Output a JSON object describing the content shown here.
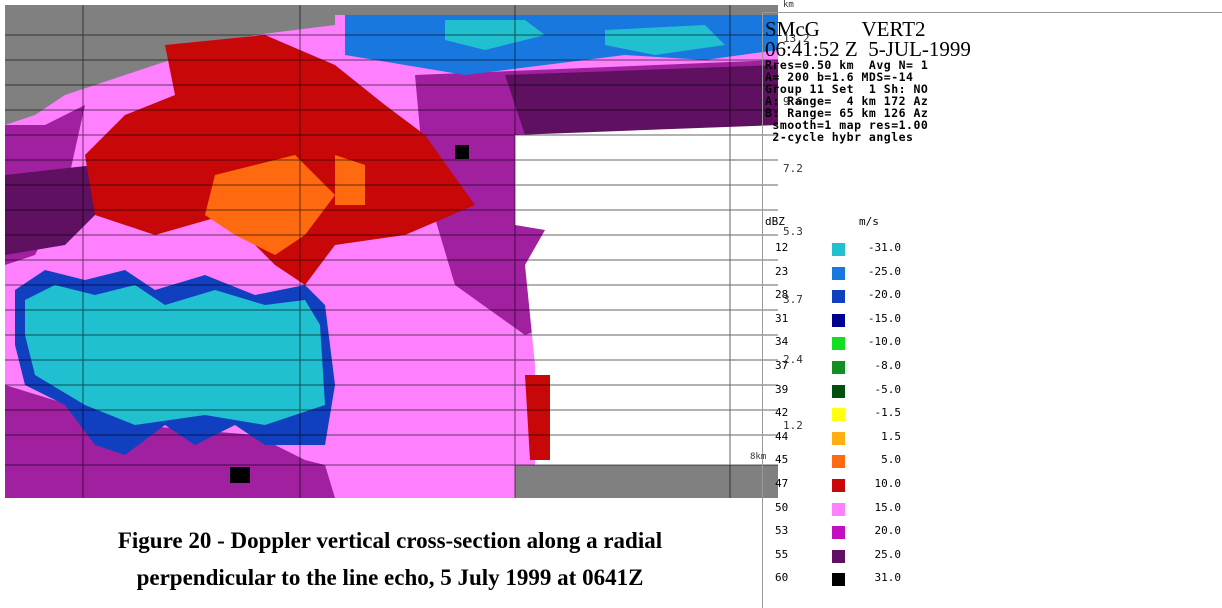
{
  "figure": {
    "axis_labels": [
      "13.2",
      "9.6",
      "7.2",
      "5.3",
      "3.7",
      "2.4",
      "1.2"
    ],
    "unit_top": "km",
    "unit_bottom": "8km"
  },
  "caption": [
    "Figure 20 - Doppler vertical cross-section along a radial",
    "perpendicular to the line echo, 5 July 1999 at 0641Z"
  ],
  "panel": {
    "title": [
      "SMcG        VERT2",
      "06:41:52 Z  5-JUL-1999"
    ],
    "header": [
      "Rres=0.50 km  Avg N= 1",
      "A= 200 b=1.6 MDS=-14",
      "Group 11 Set  1 Sh: NO",
      "A: Range=  4 km 172 Az",
      "B: Range= 65 km 126 Az",
      " smooth=1 map res=1.00",
      " 2-cycle hybr angles"
    ],
    "legend": {
      "col_headers": [
        "dBZ",
        "m/s"
      ],
      "rows": [
        {
          "dbz": "12",
          "velocity": "-31.0",
          "color": "#20c0d0"
        },
        {
          "dbz": "23",
          "velocity": "-25.0",
          "color": "#1878e0"
        },
        {
          "dbz": "28",
          "velocity": "-20.0",
          "color": "#1040c0"
        },
        {
          "dbz": "31",
          "velocity": "-15.0",
          "color": "#000090"
        },
        {
          "dbz": "34",
          "velocity": "-10.0",
          "color": "#10e020"
        },
        {
          "dbz": "37",
          "velocity": "-8.0",
          "color": "#109020"
        },
        {
          "dbz": "39",
          "velocity": "-5.0",
          "color": "#005010"
        },
        {
          "dbz": "42",
          "velocity": "-1.5",
          "color": "#ffff10"
        },
        {
          "dbz": "44",
          "velocity": "1.5",
          "color": "#ffb010"
        },
        {
          "dbz": "45",
          "velocity": "5.0",
          "color": "#ff6a10"
        },
        {
          "dbz": "47",
          "velocity": "10.0",
          "color": "#c80808"
        },
        {
          "dbz": "50",
          "velocity": "15.0",
          "color": "#ff80ff"
        },
        {
          "dbz": "53",
          "velocity": "20.0",
          "color": "#c010c0"
        },
        {
          "dbz": "55",
          "velocity": "25.0",
          "color": "#601060"
        },
        {
          "dbz": "60",
          "velocity": "31.0",
          "color": "#000000"
        }
      ]
    }
  }
}
